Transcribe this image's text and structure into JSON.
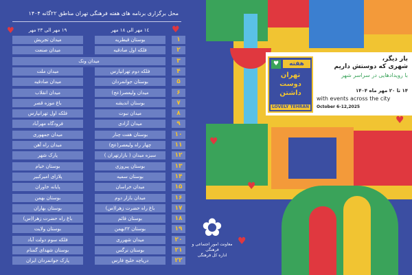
{
  "table": {
    "title": "محل برگزاری برنامه های هفته فرهنگی تهران  مناطق ۲۲گانه ۱۴۰۴",
    "num_header": "مناطق",
    "col1_header": "١٤ مهر الی ١٨ مهر",
    "col2_header": "١٩ مهر الی ٢٣ مهر",
    "rows": [
      {
        "n": "۱",
        "a": "بوستان قیطریه",
        "b": "میدان تجریش"
      },
      {
        "n": "۲",
        "a": "فلکه اول صادقیه",
        "b": "میدان صنعت"
      },
      {
        "n": "۳",
        "span": "میدان ونک"
      },
      {
        "n": "۴",
        "a": "فلکه دوم تهرانپارس",
        "b": "میدان ملت"
      },
      {
        "n": "۵",
        "a": "بوستان جوانمردان",
        "b": "میدان صادقیه"
      },
      {
        "n": "۶",
        "a": "میدان ولیعصر(عج)",
        "b": "میدان انقلاب"
      },
      {
        "n": "۷",
        "a": "بوستان اندیشه",
        "b": "باغ موزه قصر"
      },
      {
        "n": "۸",
        "a": "میدان نبوت",
        "b": "فلکه اول تهرانپارس"
      },
      {
        "n": "۹",
        "a": "میدان آزادی",
        "b": "فرودگاه مهرآباد"
      },
      {
        "n": "۱۰",
        "a": "بوستان هفت چنار",
        "b": "میدان جمهوری"
      },
      {
        "n": "۱۱",
        "a": "چهار راه ولیعصر(عج)",
        "b": "میدان راه آهن"
      },
      {
        "n": "۱۲",
        "a": "سبزه میدان ( بازارتهران )",
        "b": "پارک شهر"
      },
      {
        "n": "۱۳",
        "a": "بوستان پیروزی",
        "b": "بوستان خیام"
      },
      {
        "n": "۱۴",
        "a": "بوستان سمیه",
        "b": "پلازای امیرکبیر"
      },
      {
        "n": "۱۵",
        "a": "میدان خراسان",
        "b": "پایانه خاوران"
      },
      {
        "n": "۱۶",
        "a": "میدان بازار دوم",
        "b": "بوستان بهمن"
      },
      {
        "n": "۱۷",
        "a": "باغ راه حضرت زهرا(س)",
        "b": "بوستان بهاران"
      },
      {
        "n": "۱۸",
        "a": "بوستان قائم",
        "b": "باغ راه حضرت زهرا(س)"
      },
      {
        "n": "۱۹",
        "a": "بوستان ۲۲بهمن",
        "b": "بوستان ولایت"
      },
      {
        "n": "۲۰",
        "a": "میدان شهرری",
        "b": "فلکه سوم دولت آباد"
      },
      {
        "n": "۲۱",
        "a": "بوستان نرگس",
        "b": "بوستان شهدای گمنام"
      },
      {
        "n": "۲۲",
        "a": "دریاچه خلیج فارس",
        "b": "پارک جوانمردان ایران"
      }
    ]
  },
  "card": {
    "emblem_top": "هفته",
    "emblem_mid": "تهران دوست داشتن",
    "emblem_bottom": "LOVELY TEHRAN",
    "line1": "بار دیگر،",
    "line2": "شهری که دوستش داریم",
    "line3": "با رویدادهایی در سراسر شهر",
    "line4": "۱۴ تا ۲۰ مهر ماه ۱۴۰۴",
    "english": "with events across the city",
    "dates": "October 6-12,2025"
  },
  "logo": {
    "line1": "معاونت امور اجتماعی و فرهنگی",
    "line2": "اداره کل فرهنگی"
  },
  "colors": {
    "panel": "#3b4ea2",
    "cell": "#6b7fc4",
    "number": "#f2c230",
    "heart": "#e0383f",
    "green": "#3aa35a"
  }
}
